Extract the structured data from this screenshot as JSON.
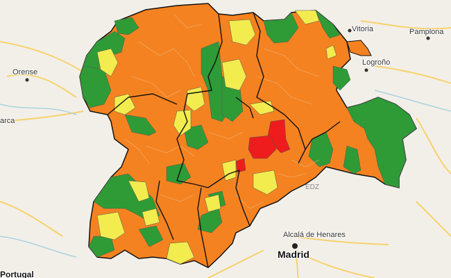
{
  "map": {
    "colors": {
      "background": "#f2efe9",
      "orange": "#f58220",
      "green": "#2e9b36",
      "yellow": "#f2ec4e",
      "red": "#ee1c1c",
      "border": "#111111",
      "road": "#f7d26b",
      "water": "#aad3df"
    },
    "cities": [
      {
        "key": "vitoria",
        "label": "Vitoria"
      },
      {
        "key": "pamplona",
        "label": "Pamplona"
      },
      {
        "key": "orense",
        "label": "Orense"
      },
      {
        "key": "logrono",
        "label": "Logroño"
      },
      {
        "key": "alcala",
        "label": "Alcalá de Henares"
      },
      {
        "key": "madrid",
        "label": "Madrid"
      },
      {
        "key": "portugal",
        "label": "Portugal"
      },
      {
        "key": "barca",
        "label": "arca"
      }
    ],
    "watermark": "EDZ"
  }
}
